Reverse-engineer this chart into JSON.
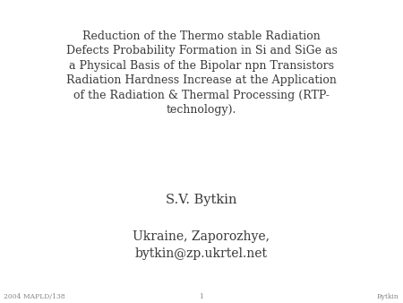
{
  "main_text": "Reduction of the Thermo stable Radiation\nDefects Probability Formation in Si and SiGe as\na Physical Basis of the Bipolar npn Transistors\nRadiation Hardness Increase at the Application\nof the Radiation & Thermal Processing (RTP-\ntechnology).",
  "author": "S.V. Bytkin",
  "affiliation": "Ukraine, Zaporozhye,\nbytkin@zp.ukrtel.net",
  "footer_left": "2004 MAPLD/138",
  "footer_center": "1",
  "footer_right": "Bytkin",
  "bg_color": "#ffffff",
  "text_color": "#3a3a3a",
  "footer_color": "#888888",
  "main_fontsize": 9.0,
  "author_fontsize": 10.5,
  "affil_fontsize": 10.0,
  "footer_fontsize": 5.5
}
